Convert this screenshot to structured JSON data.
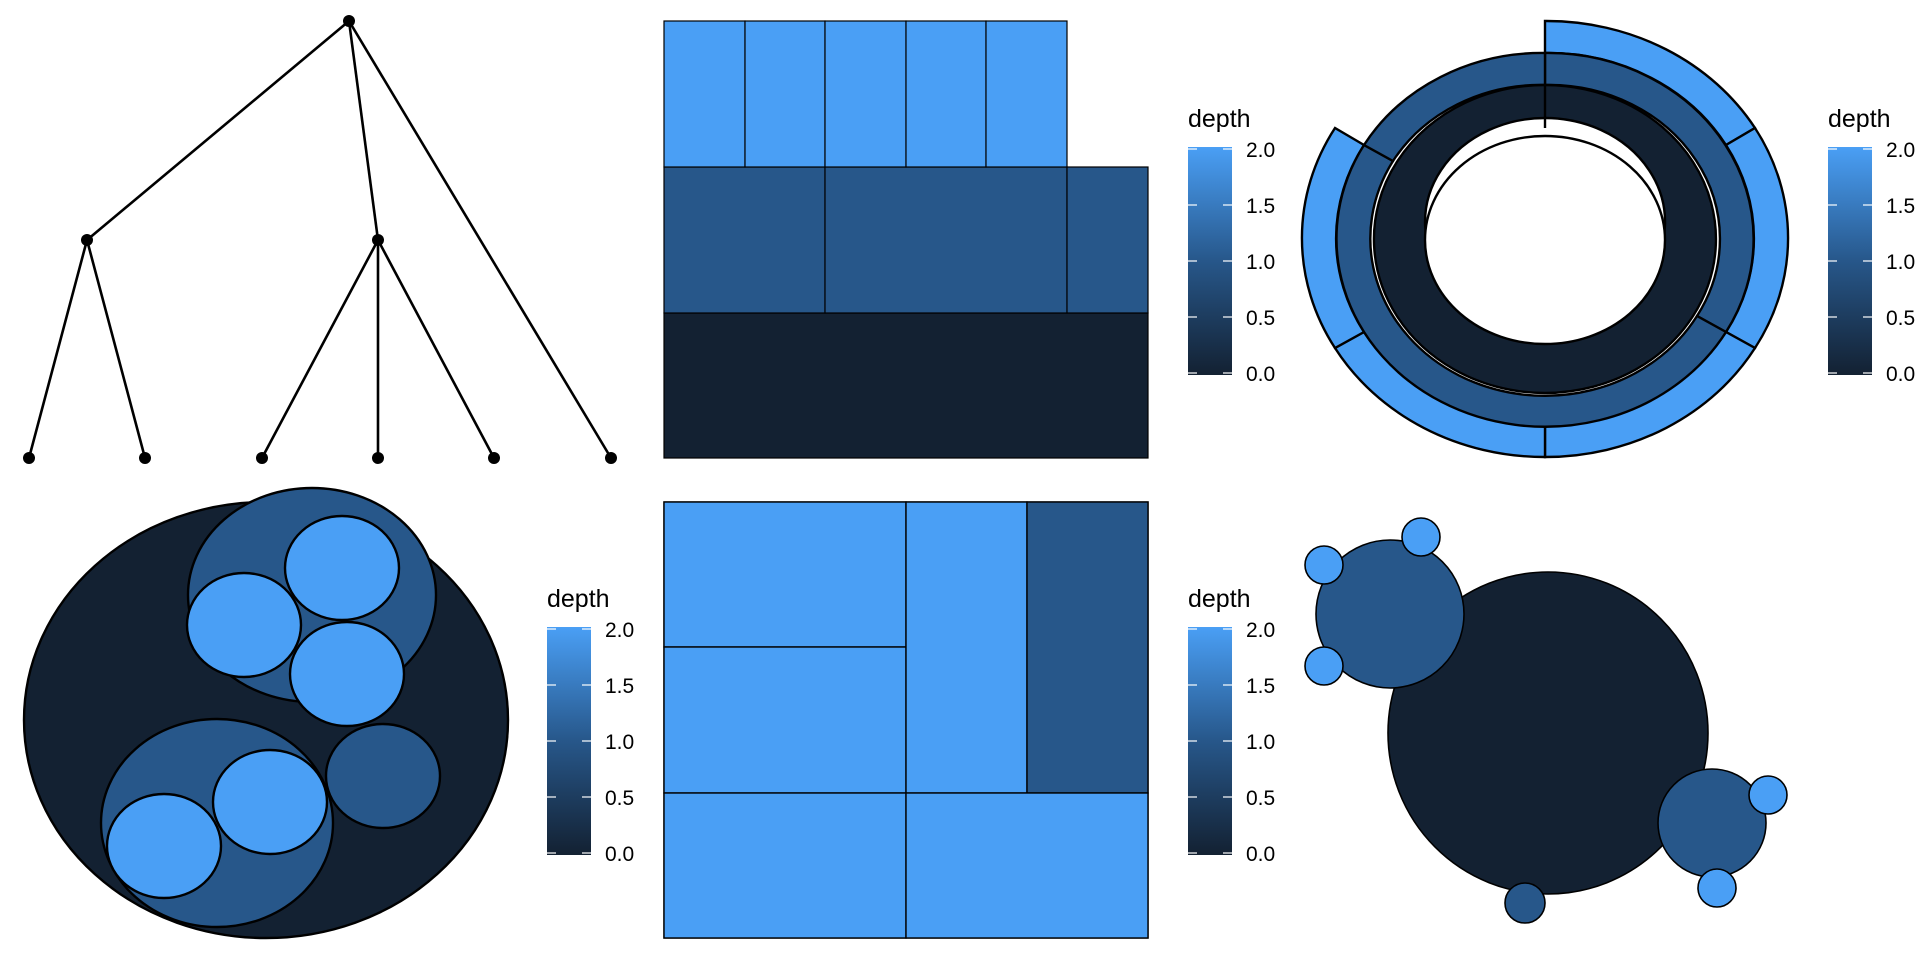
{
  "colors": {
    "depth_0": "#132132",
    "depth_1": "#27578a",
    "depth_2": "#4a9ff5",
    "stroke": "#000000",
    "background": "#ffffff"
  },
  "legend": {
    "title": "depth",
    "ticks": [
      "2.0",
      "1.5",
      "1.0",
      "0.5",
      "0.0"
    ],
    "range": [
      0,
      2
    ]
  },
  "hierarchy": {
    "root": {
      "depth": 0,
      "children": 3
    },
    "children": [
      {
        "depth": 1,
        "children": 2
      },
      {
        "depth": 1,
        "children": 3
      },
      {
        "depth": 1,
        "children": 0
      }
    ]
  }
}
